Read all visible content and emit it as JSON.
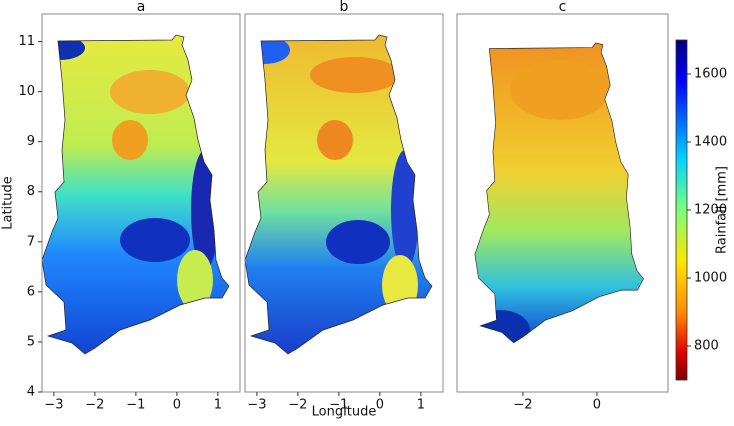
{
  "chart_data": [
    {
      "type": "contour",
      "title": "a",
      "ylabel": "Latitude",
      "xlim": [
        -3.29,
        1.54
      ],
      "ylim": [
        4,
        11.55
      ],
      "xticks": [
        {
          "value": -3,
          "label": "−3"
        },
        {
          "value": -2,
          "label": "−2"
        },
        {
          "value": -1,
          "label": "−1"
        },
        0,
        1
      ],
      "yticks": [
        4,
        5,
        6,
        7,
        8,
        9,
        10,
        11
      ]
    },
    {
      "type": "contour",
      "title": "b",
      "xlabel": "Longitude",
      "xlim": [
        -3.29,
        1.54
      ],
      "ylim": [
        4,
        11.55
      ],
      "xticks": [
        {
          "value": -3,
          "label": "−3"
        },
        {
          "value": -2,
          "label": "−2"
        },
        {
          "value": -1,
          "label": "−1"
        },
        0,
        1
      ]
    },
    {
      "type": "contour",
      "title": "c",
      "xlim": [
        -3.78,
        1.92
      ],
      "ylim": [
        4,
        11.55
      ],
      "xticks": [
        {
          "value": -2,
          "label": "−2"
        },
        0
      ]
    }
  ],
  "colorbar": {
    "label": "Rainfall [mm]",
    "clim": [
      700,
      1700
    ],
    "ticks": [
      800,
      1000,
      1200,
      1400,
      1600
    ]
  }
}
